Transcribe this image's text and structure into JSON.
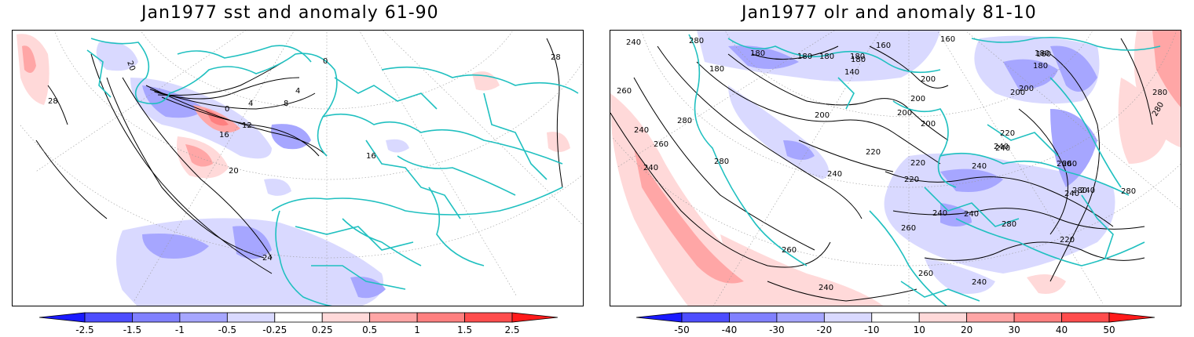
{
  "panels": [
    {
      "title": "Jan1977 sst and anomaly 61-90",
      "contour_labels": [
        "28",
        "20",
        "0",
        "4",
        "8",
        "12",
        "16",
        "20",
        "16",
        "24",
        "28",
        "0",
        "4"
      ],
      "colorbar": {
        "ticks": [
          "-2.5",
          "-1.5",
          "-1",
          "-0.5",
          "-0.25",
          "0.25",
          "0.5",
          "1",
          "1.5",
          "2.5"
        ],
        "colors": [
          "#1a1aff",
          "#4d4dff",
          "#8080ff",
          "#a6a6ff",
          "#d9d9ff",
          "#ffffff",
          "#ffd9d9",
          "#ffa6a6",
          "#ff8080",
          "#ff4d4d",
          "#ff1a1a"
        ]
      }
    },
    {
      "title": "Jan1977 olr and anomaly 81-10",
      "contour_labels": [
        "240",
        "280",
        "180",
        "180",
        "180",
        "180",
        "160",
        "160",
        "180",
        "140",
        "180",
        "180",
        "160",
        "180",
        "200",
        "200",
        "200",
        "200",
        "200",
        "260",
        "240",
        "280",
        "260",
        "240",
        "280",
        "240",
        "220",
        "220",
        "220",
        "240",
        "240",
        "220",
        "200",
        "260",
        "240",
        "280",
        "240",
        "240",
        "240",
        "280",
        "260",
        "260",
        "240",
        "260",
        "240",
        "280",
        "220",
        "240",
        "280",
        "200",
        "260",
        "280"
      ],
      "colorbar": {
        "ticks": [
          "-50",
          "-40",
          "-30",
          "-20",
          "-10",
          "10",
          "20",
          "30",
          "40",
          "50"
        ],
        "colors": [
          "#1a1aff",
          "#4d4dff",
          "#8080ff",
          "#a6a6ff",
          "#d9d9ff",
          "#ffffff",
          "#ffd9d9",
          "#ffa6a6",
          "#ff8080",
          "#ff4d4d",
          "#ff1a1a"
        ]
      }
    }
  ]
}
